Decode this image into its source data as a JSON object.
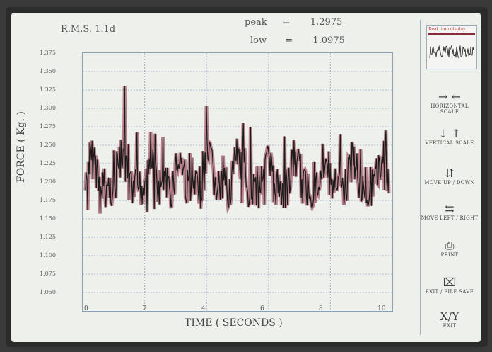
{
  "header": {
    "rms_label": "R.M.S. 1.1d",
    "peak_label": "peak",
    "peak_eq": "=",
    "peak_value": "1.2975",
    "low_label": "low",
    "low_eq": "=",
    "low_value": "1.0975"
  },
  "axes": {
    "ylabel": "FORCE ( Kg. )",
    "xlabel": "TIME ( SECONDS )",
    "yticks": [
      "1.375",
      "1.350",
      "1.325",
      "1.300",
      "1.275",
      "1.250",
      "1.225",
      "1.200",
      "1.175",
      "1.150",
      "1.125",
      "1.100",
      "1.075",
      "1.050"
    ],
    "xticks": [
      "0",
      "2",
      "4",
      "6",
      "8",
      "10"
    ]
  },
  "sidebar": {
    "mini_caption": "Real time display",
    "buttons": [
      {
        "glyph": "→ ←",
        "label": "HORIZONTAL SCALE"
      },
      {
        "glyph": "↓ ↑",
        "label": "VERTICAL SCALE"
      },
      {
        "glyph": "⇵",
        "label": "MOVE UP / DOWN"
      },
      {
        "glyph": "⇆",
        "label": "MOVE LEFT / RIGHT"
      },
      {
        "glyph": "⎙",
        "label": "PRINT"
      },
      {
        "glyph": "⌧",
        "label": "EXIT / FILE SAVE"
      },
      {
        "glyph": "X/Y",
        "label": "EXIT"
      }
    ]
  },
  "colors": {
    "signal": "#8a2a3a",
    "grid": "#a8bacb",
    "trace": "#1a1a1a"
  }
}
